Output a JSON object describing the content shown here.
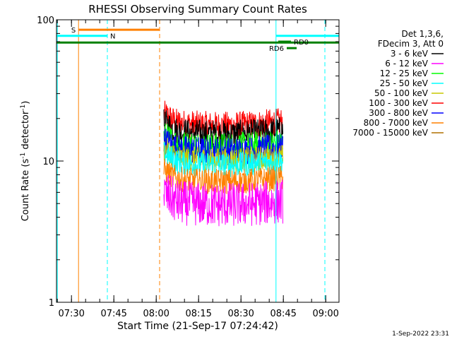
{
  "chart_data": {
    "type": "line",
    "title": "RHESSI Observing Summary Count Rates",
    "xlabel": "Start Time (21-Sep-17 07:24:42)",
    "ylabel": "Count Rate (s",
    "ylabel_sup": "-1",
    "ylabel_rest": " detector",
    "ylabel_sup2": "-1",
    "ylabel_end": ")",
    "timestamp": "1-Sep-2022 23:31",
    "yscale": "log",
    "ylim": [
      1,
      100
    ],
    "y_ticks": [
      {
        "value": 1,
        "label": "1"
      },
      {
        "value": 10,
        "label": "10"
      },
      {
        "value": 100,
        "label": "100"
      }
    ],
    "xlim_minutes": [
      0,
      100
    ],
    "x_ticks": [
      {
        "minutes": 5.3,
        "label": "07:30"
      },
      {
        "minutes": 20.3,
        "label": "07:45"
      },
      {
        "minutes": 35.3,
        "label": "08:00"
      },
      {
        "minutes": 50.3,
        "label": "08:15"
      },
      {
        "minutes": 65.3,
        "label": "08:30"
      },
      {
        "minutes": 80.3,
        "label": "08:45"
      },
      {
        "minutes": 95.3,
        "label": "09:00"
      }
    ],
    "legend": {
      "header": [
        "Det 1,3,6,",
        "FDecim 3, Att 0"
      ],
      "entries": [
        {
          "label": "3 - 6 keV",
          "color": "#000000"
        },
        {
          "label": "6 - 12 keV",
          "color": "#ff00ff"
        },
        {
          "label": "12 - 25 keV",
          "color": "#00ff00"
        },
        {
          "label": "25 - 50 keV",
          "color": "#00ffff"
        },
        {
          "label": "50 - 100 keV",
          "color": "#c8c800"
        },
        {
          "label": "100 - 300 keV",
          "color": "#ff0000"
        },
        {
          "label": "300 - 800 keV",
          "color": "#0000ff"
        },
        {
          "label": "800 - 7000 keV",
          "color": "#ff8000"
        },
        {
          "label": "7000 - 15000 keV",
          "color": "#b07000"
        }
      ]
    },
    "series": [
      {
        "name": "100 - 300 keV",
        "color": "#ff0000",
        "t_start": 38,
        "t_end": 80,
        "level": 19.0,
        "noise": 0.1
      },
      {
        "name": "3 - 6 keV",
        "color": "#000000",
        "t_start": 38,
        "t_end": 80,
        "level": 16.5,
        "noise": 0.1
      },
      {
        "name": "12 - 25 keV",
        "color": "#00ff00",
        "t_start": 38,
        "t_end": 80,
        "level": 13.5,
        "noise": 0.1
      },
      {
        "name": "300 - 800 keV",
        "color": "#0000ff",
        "t_start": 38,
        "t_end": 80,
        "level": 12.5,
        "noise": 0.1
      },
      {
        "name": "50 - 100 keV",
        "color": "#c8c800",
        "t_start": 38,
        "t_end": 80,
        "level": 10.8,
        "noise": 0.09
      },
      {
        "name": "25 - 50 keV",
        "color": "#00ffff",
        "t_start": 38,
        "t_end": 80,
        "level": 10.0,
        "noise": 0.09
      },
      {
        "name": "800 - 7000 keV",
        "color": "#ff8000",
        "t_start": 38,
        "t_end": 80,
        "level": 7.6,
        "noise": 0.09
      },
      {
        "name": "6 - 12 keV",
        "color": "#ff00ff",
        "t_start": 38,
        "t_end": 80,
        "level": 5.2,
        "noise": 0.16
      }
    ],
    "markers": {
      "vertical_lines": [
        {
          "name": "cyan-solid-start",
          "minutes": 0.3,
          "color": "#00ffff",
          "style": "solid"
        },
        {
          "name": "orange-solid",
          "minutes": 7.8,
          "color": "#ff8000",
          "style": "solid"
        },
        {
          "name": "cyan-dashed-1",
          "minutes": 18.0,
          "color": "#00ffff",
          "style": "dashed"
        },
        {
          "name": "orange-dashed",
          "minutes": 36.5,
          "color": "#ff8000",
          "style": "dashed"
        },
        {
          "name": "cyan-solid-2",
          "minutes": 77.7,
          "color": "#00ffff",
          "style": "solid"
        },
        {
          "name": "cyan-dashed-2",
          "minutes": 95.0,
          "color": "#00ffff",
          "style": "dashed"
        }
      ],
      "bars": [
        {
          "name": "S",
          "label": "S",
          "color": "#ff8000",
          "t_start": 7.8,
          "t_end": 36.5,
          "y": 85,
          "label_side": "left"
        },
        {
          "name": "N",
          "label": "N",
          "color": "#00ffff",
          "t_start": 0,
          "t_end": 18.0,
          "y": 77,
          "label_side": "right"
        },
        {
          "name": "N2",
          "label": "",
          "color": "#00ffff",
          "t_start": 77.7,
          "t_end": 100,
          "y": 77,
          "label_side": "none"
        },
        {
          "name": "green-line",
          "label": "",
          "color": "#008000",
          "t_start": 0,
          "t_end": 100,
          "y": 69,
          "label_side": "none"
        },
        {
          "name": "RD0",
          "label": "RD0",
          "color": "#008000",
          "t_start": 78.5,
          "t_end": 83,
          "y": 70,
          "label_side": "right"
        },
        {
          "name": "RD6",
          "label": "RD6",
          "color": "#008000",
          "t_start": 81.5,
          "t_end": 85,
          "y": 63,
          "label_side": "left"
        }
      ]
    }
  }
}
